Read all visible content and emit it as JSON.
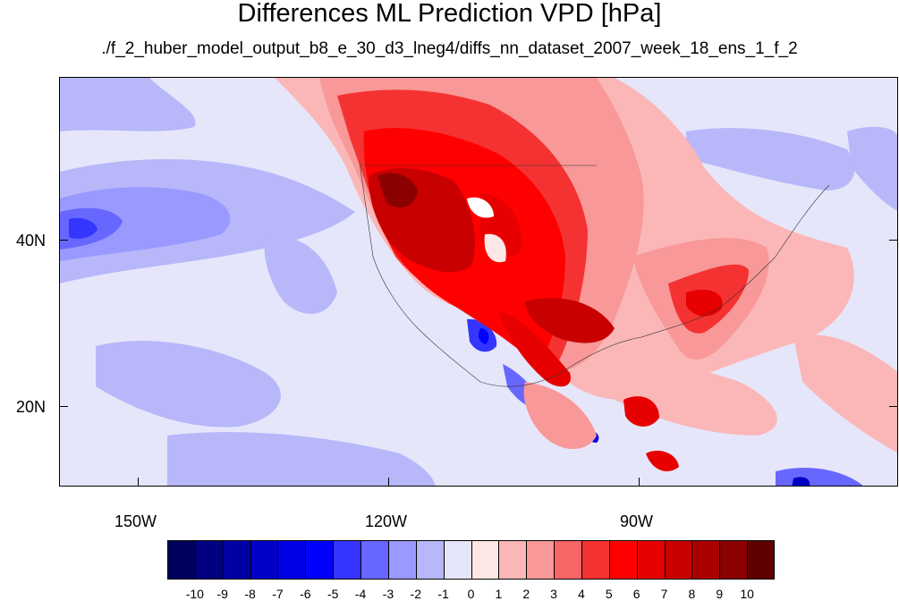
{
  "title": "Differences ML Prediction VPD [hPa]",
  "subtitle": "./f_2_huber_model_output_b8_e_30_d3_lneg4/diffs_nn_dataset_2007_week_18_ens_1_f_2",
  "axes": {
    "lat_labels": [
      "40N",
      "20N"
    ],
    "lon_labels": [
      "150W",
      "120W",
      "90W"
    ]
  },
  "colorbar": {
    "labels": [
      "-10",
      "-9",
      "-8",
      "-7",
      "-6",
      "-5",
      "-4",
      "-3",
      "-2",
      "-1",
      "0",
      "1",
      "2",
      "3",
      "4",
      "5",
      "6",
      "7",
      "8",
      "9",
      "10"
    ],
    "colors": [
      "#00005e",
      "#000080",
      "#0000a3",
      "#0000c7",
      "#0000e6",
      "#0000ff",
      "#3535ff",
      "#6767ff",
      "#9999ff",
      "#b7b7fa",
      "#e6e6fb",
      "#fde6e6",
      "#fbb7b7",
      "#f89898",
      "#f76565",
      "#f53232",
      "#ff0000",
      "#e60000",
      "#c80000",
      "#aa0000",
      "#8b0000",
      "#5e0000"
    ]
  }
}
